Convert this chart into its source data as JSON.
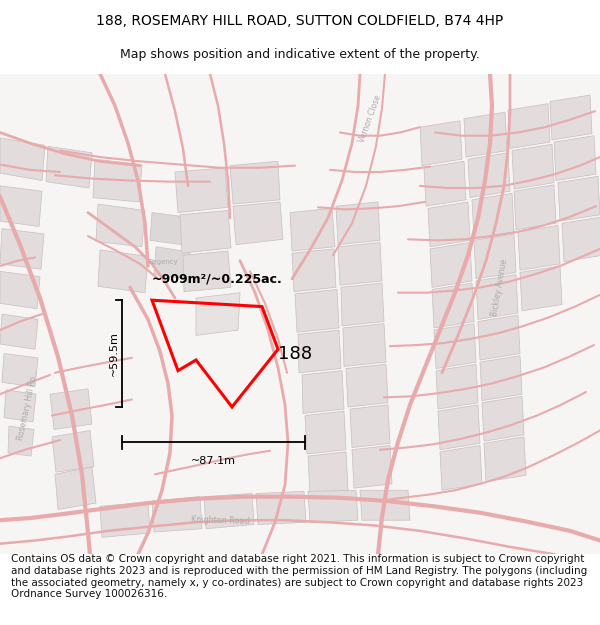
{
  "title": "188, ROSEMARY HILL ROAD, SUTTON COLDFIELD, B74 4HP",
  "subtitle": "Map shows position and indicative extent of the property.",
  "footer": "Contains OS data © Crown copyright and database right 2021. This information is subject to Crown copyright and database rights 2023 and is reproduced with the permission of HM Land Registry. The polygons (including the associated geometry, namely x, y co-ordinates) are subject to Crown copyright and database rights 2023 Ordnance Survey 100026316.",
  "area_label": "~909m²/~0.225ac.",
  "width_label": "~87.1m",
  "height_label": "~59.5m",
  "property_number": "188",
  "map_bg": "#f7f4f4",
  "block_fill": "#e2dcdc",
  "block_edge": "#c8bfbf",
  "road_color": "#e8aaaa",
  "road_lw": 1.5,
  "property_color": "#ff0000",
  "property_linewidth": 2.0,
  "title_fontsize": 10,
  "subtitle_fontsize": 9,
  "footer_fontsize": 7.5,
  "label_fontsize": 9,
  "measure_fontsize": 8,
  "propnum_fontsize": 13,
  "road_label_color": "#aaaaaa",
  "road_label_fontsize": 5.5
}
